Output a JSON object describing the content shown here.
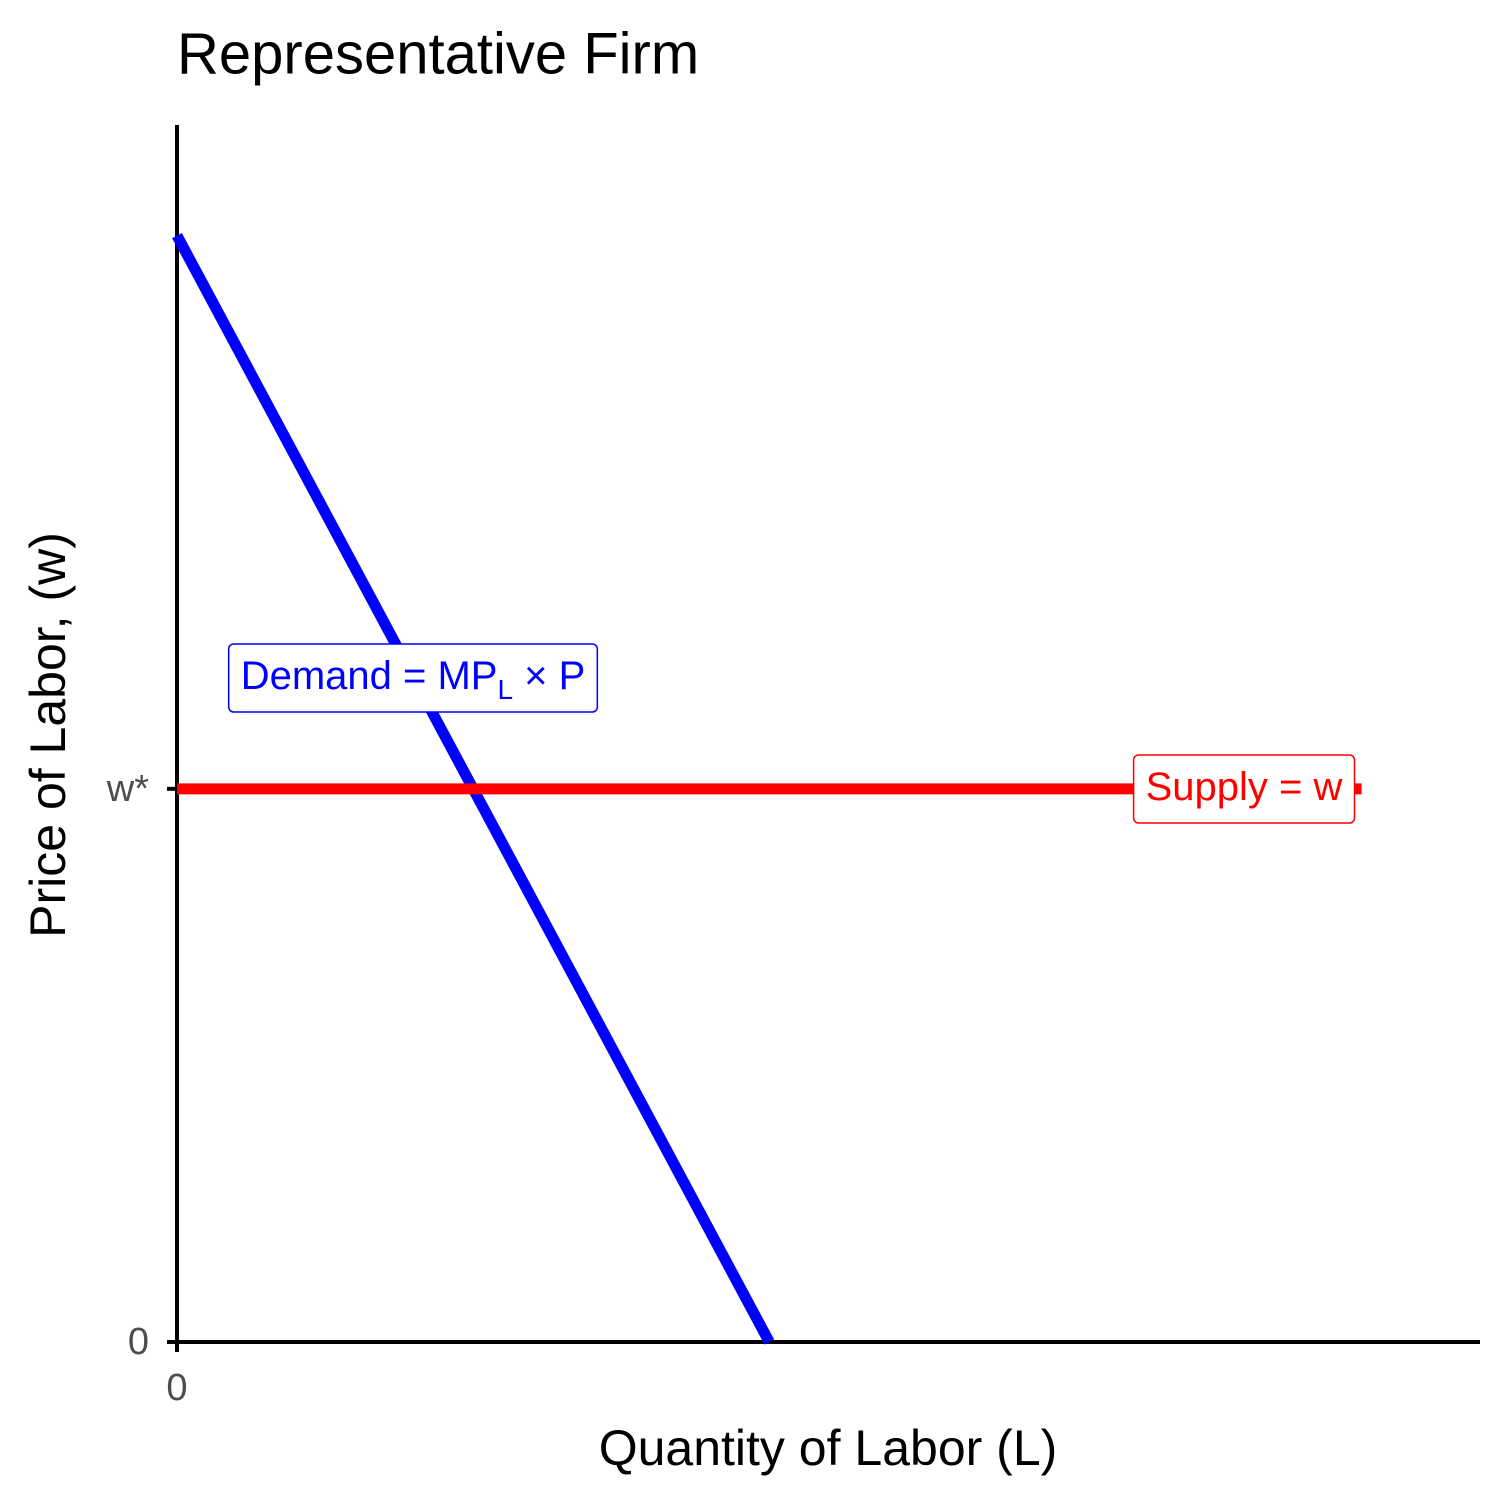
{
  "chart_data": {
    "type": "line",
    "title": "Representative Firm",
    "x_label": "Quantity of Labor (L)",
    "y_label": "Price of Labor, (w)",
    "xlim": [
      0,
      11
    ],
    "ylim": [
      0,
      11
    ],
    "xticks": [
      0
    ],
    "yticks": [
      0,
      {
        "value": 5,
        "label": "w*"
      }
    ],
    "series": [
      {
        "label_parts": [
          "Demand = MP",
          "L",
          " × P"
        ],
        "color": "#0000ff",
        "x": [
          0,
          5
        ],
        "values": [
          10,
          0
        ]
      },
      {
        "label_parts": [
          "Supply = w"
        ],
        "color": "#ff0000",
        "x": [
          0,
          10
        ],
        "values": [
          5,
          5
        ]
      }
    ]
  }
}
